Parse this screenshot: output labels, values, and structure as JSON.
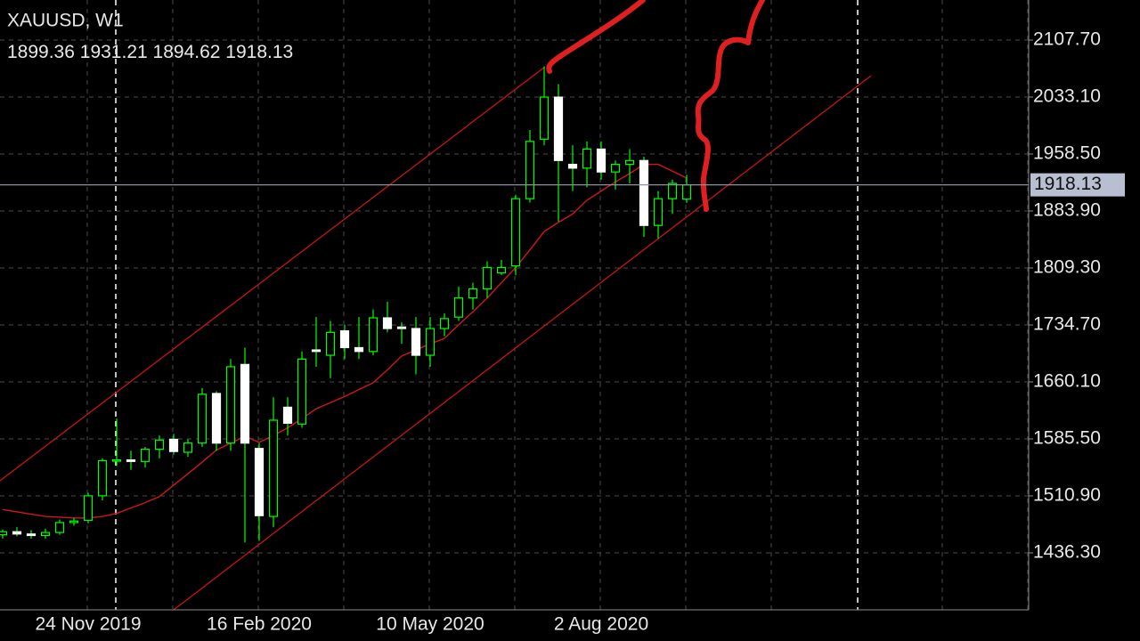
{
  "chart_data": {
    "type": "candlestick",
    "title": "XAUUSD, W1",
    "categories": [
      null,
      null,
      null,
      null,
      null,
      null,
      "24 Nov 2019",
      null,
      null,
      null,
      null,
      null,
      null,
      null,
      null,
      null,
      null,
      null,
      "16 Feb 2020",
      null,
      null,
      null,
      null,
      null,
      null,
      null,
      null,
      null,
      null,
      null,
      "10 May 2020",
      null,
      null,
      null,
      null,
      null,
      null,
      null,
      null,
      null,
      null,
      null,
      "2 Aug 2020",
      null,
      null,
      null,
      null,
      null,
      null
    ],
    "open": [
      1460,
      1464,
      1461,
      1459,
      1463,
      1476,
      1479,
      1511,
      1557,
      1558,
      1556,
      1572,
      1585,
      1568,
      1580,
      1645,
      1580,
      1683,
      1573,
      1484,
      1627,
      1605,
      1702,
      1695,
      1727,
      1705,
      1700,
      1744,
      1732,
      1730,
      1695,
      1730,
      1745,
      1770,
      1782,
      1803,
      1812,
      1900,
      1978,
      2033,
      1945,
      1940,
      1965,
      1935,
      1945,
      1950,
      1865,
      1900,
      1899.36
    ],
    "high": [
      1467,
      1470,
      1466,
      1468,
      1480,
      1482,
      1515,
      1560,
      1612,
      1570,
      1575,
      1590,
      1592,
      1585,
      1652,
      1648,
      1690,
      1705,
      1580,
      1640,
      1640,
      1700,
      1745,
      1740,
      1735,
      1745,
      1755,
      1765,
      1738,
      1745,
      1745,
      1750,
      1785,
      1790,
      1818,
      1820,
      1905,
      1990,
      2073,
      2050,
      1970,
      1975,
      1975,
      1950,
      1965,
      1955,
      1910,
      1925,
      1931.21
    ],
    "low": [
      1455,
      1458,
      1455,
      1455,
      1460,
      1472,
      1475,
      1505,
      1550,
      1545,
      1548,
      1560,
      1565,
      1562,
      1575,
      1570,
      1570,
      1450,
      1452,
      1470,
      1590,
      1600,
      1680,
      1665,
      1690,
      1690,
      1695,
      1725,
      1710,
      1670,
      1680,
      1720,
      1740,
      1755,
      1770,
      1800,
      1800,
      1895,
      1970,
      1870,
      1910,
      1915,
      1925,
      1912,
      1920,
      1850,
      1848,
      1880,
      1894.62
    ],
    "close": [
      1464,
      1461,
      1459,
      1463,
      1476,
      1478,
      1511,
      1557,
      1558,
      1556,
      1572,
      1584,
      1569,
      1580,
      1644,
      1580,
      1680,
      1580,
      1485,
      1610,
      1606,
      1690,
      1700,
      1725,
      1705,
      1700,
      1744,
      1730,
      1730,
      1695,
      1730,
      1743,
      1770,
      1782,
      1810,
      1810,
      1900,
      1975,
      2033,
      1950,
      1940,
      1965,
      1935,
      1945,
      1950,
      1865,
      1900,
      1920,
      1918.13
    ],
    "up_color": "#00ff00",
    "down_color": "#ffffff",
    "ma": {
      "color": "#d01818",
      "values": [
        1493,
        1490,
        1487,
        1484,
        1483,
        1482,
        1482,
        1484,
        1488,
        1495,
        1502,
        1510,
        1525,
        1540,
        1555,
        1571,
        1580,
        1589,
        1581,
        1590,
        1600,
        1612,
        1625,
        1633,
        1641,
        1650,
        1659,
        1676,
        1694,
        1702,
        1710,
        1717,
        1735,
        1752,
        1770,
        1790,
        1810,
        1833,
        1857,
        1869,
        1880,
        1898,
        1910,
        1922,
        1933,
        1945,
        1945,
        1936,
        1927
      ]
    },
    "ylim": [
      1361.7,
      2160.15
    ],
    "yticks": [
      {
        "value": 1436.3,
        "label": "1436.30"
      },
      {
        "value": 1510.9,
        "label": "1510.90"
      },
      {
        "value": 1585.5,
        "label": "1585.50"
      },
      {
        "value": 1660.1,
        "label": "1660.10"
      },
      {
        "value": 1734.7,
        "label": "1734.70"
      },
      {
        "value": 1809.3,
        "label": "1809.30"
      },
      {
        "value": 1883.9,
        "label": "1883.90"
      },
      {
        "value": 1958.5,
        "label": "1958.50"
      },
      {
        "value": 2033.1,
        "label": "2033.10"
      },
      {
        "value": 2107.7,
        "label": "2107.70"
      }
    ],
    "grid": true
  }
}
